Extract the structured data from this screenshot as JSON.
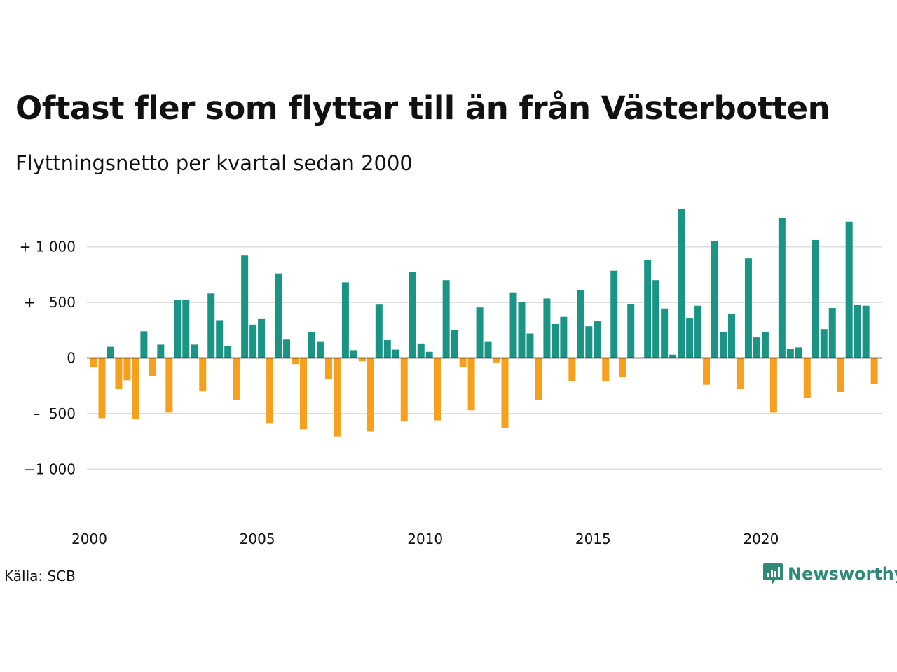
{
  "title": "Oftast fler som flyttar till än från Västerbotten",
  "subtitle": "Flyttningsnetto per kvartal sedan 2000",
  "source": "Källa: SCB",
  "brand": "Newsworthy",
  "colors": {
    "positive": "#1a9585",
    "negative": "#f7a01e",
    "grid": "#dedede",
    "brand": "#2e8a78"
  },
  "chart_data": {
    "type": "bar",
    "ylim": [
      -1400,
      1400
    ],
    "yticks": [
      {
        "value": 1000,
        "label": "+ 1 000"
      },
      {
        "value": 500,
        "label": "+   500"
      },
      {
        "value": 0,
        "label": "0"
      },
      {
        "value": -500,
        "label": "–  500"
      },
      {
        "value": -1000,
        "label": "−1 000"
      }
    ],
    "xticks": [
      "2000",
      "2005",
      "2010",
      "2015",
      "2020"
    ],
    "values": [
      -80,
      -540,
      100,
      -280,
      -200,
      -550,
      240,
      -160,
      120,
      -490,
      520,
      525,
      120,
      -300,
      580,
      340,
      105,
      -380,
      920,
      300,
      350,
      -590,
      760,
      165,
      -55,
      -640,
      230,
      150,
      -190,
      -705,
      680,
      70,
      -30,
      -660,
      480,
      160,
      75,
      -570,
      775,
      130,
      55,
      -560,
      700,
      255,
      -80,
      -470,
      455,
      150,
      -40,
      -630,
      590,
      500,
      220,
      -380,
      535,
      305,
      370,
      -210,
      610,
      285,
      330,
      -210,
      785,
      -170,
      485,
      0,
      880,
      700,
      445,
      30,
      1340,
      355,
      470,
      -240,
      1050,
      230,
      395,
      -280,
      895,
      185,
      235,
      -490,
      1255,
      85,
      95,
      -360,
      1060,
      260,
      450,
      -305,
      1225,
      475,
      470,
      -235
    ]
  }
}
